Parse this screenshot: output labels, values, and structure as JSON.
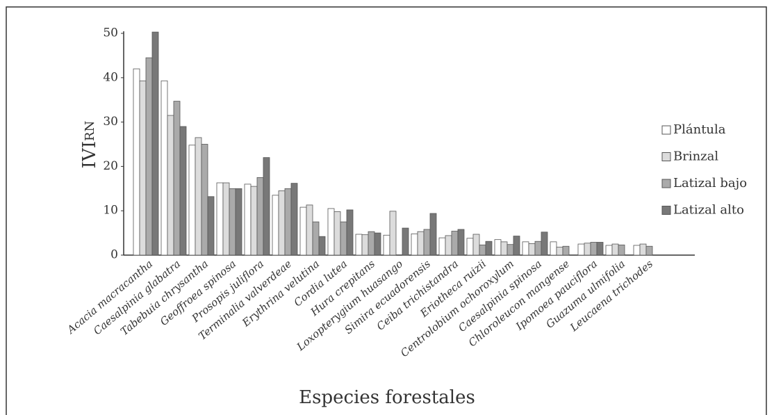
{
  "chart_data": {
    "type": "bar",
    "y_label": "IVI",
    "y_label_sub": "RN",
    "x_label": "Especies forestales",
    "categories": [
      "Acacia macracantha",
      "Caesalpinia glabatra",
      "Tabebuia chrysantha",
      "Geoffroea spinosa",
      "Prosopis juliflora",
      "Terminalia valverdeae",
      "Erythrina velutina",
      "Cordia lutea",
      "Hura crepitans",
      "Loxopterygium huasango",
      "Simira ecuadorensis",
      "Ceiba trichistandra",
      "Eriotheca ruizii",
      "Centrolobium ochoroxylum",
      "Caesalpinia spinosa",
      "Chloroleucon mangense",
      "Ipomoea pauciflora",
      "Guazuma ulmifolia",
      "Leucaena trichodes"
    ],
    "series": [
      {
        "name": "Plántula",
        "color": "#ffffff",
        "values": [
          42,
          39.3,
          24.8,
          16.3,
          16,
          13.5,
          10.8,
          10.5,
          4.7,
          4.5,
          4.8,
          3.9,
          3.8,
          3.5,
          3.0,
          3.0,
          2.5,
          2.2,
          2.2
        ]
      },
      {
        "name": "Brinzal",
        "color": "#dcdcdc",
        "values": [
          39.3,
          31.5,
          26.5,
          16.3,
          15.5,
          14.5,
          11.3,
          9.8,
          4.6,
          9.9,
          5.3,
          4.4,
          4.7,
          3.0,
          2.6,
          1.8,
          2.7,
          2.5,
          2.5
        ]
      },
      {
        "name": "Latizal bajo",
        "color": "#aaaaaa",
        "values": [
          44.5,
          34.7,
          25,
          15,
          17.5,
          15,
          7.5,
          7.5,
          5.3,
          null,
          5.8,
          5.4,
          2.3,
          2.4,
          3.1,
          2.0,
          2.9,
          2.3,
          2.0
        ]
      },
      {
        "name": "Latizal alto",
        "color": "#787878",
        "values": [
          50.3,
          29,
          13.2,
          15,
          22,
          16.2,
          4.2,
          10.2,
          5.0,
          6.1,
          9.4,
          5.8,
          3.1,
          4.3,
          5.2,
          null,
          2.9,
          null,
          null
        ]
      }
    ],
    "ylim": [
      0,
      50
    ],
    "yticks": [
      0,
      10,
      20,
      30,
      40,
      50
    ],
    "legend": "right"
  }
}
